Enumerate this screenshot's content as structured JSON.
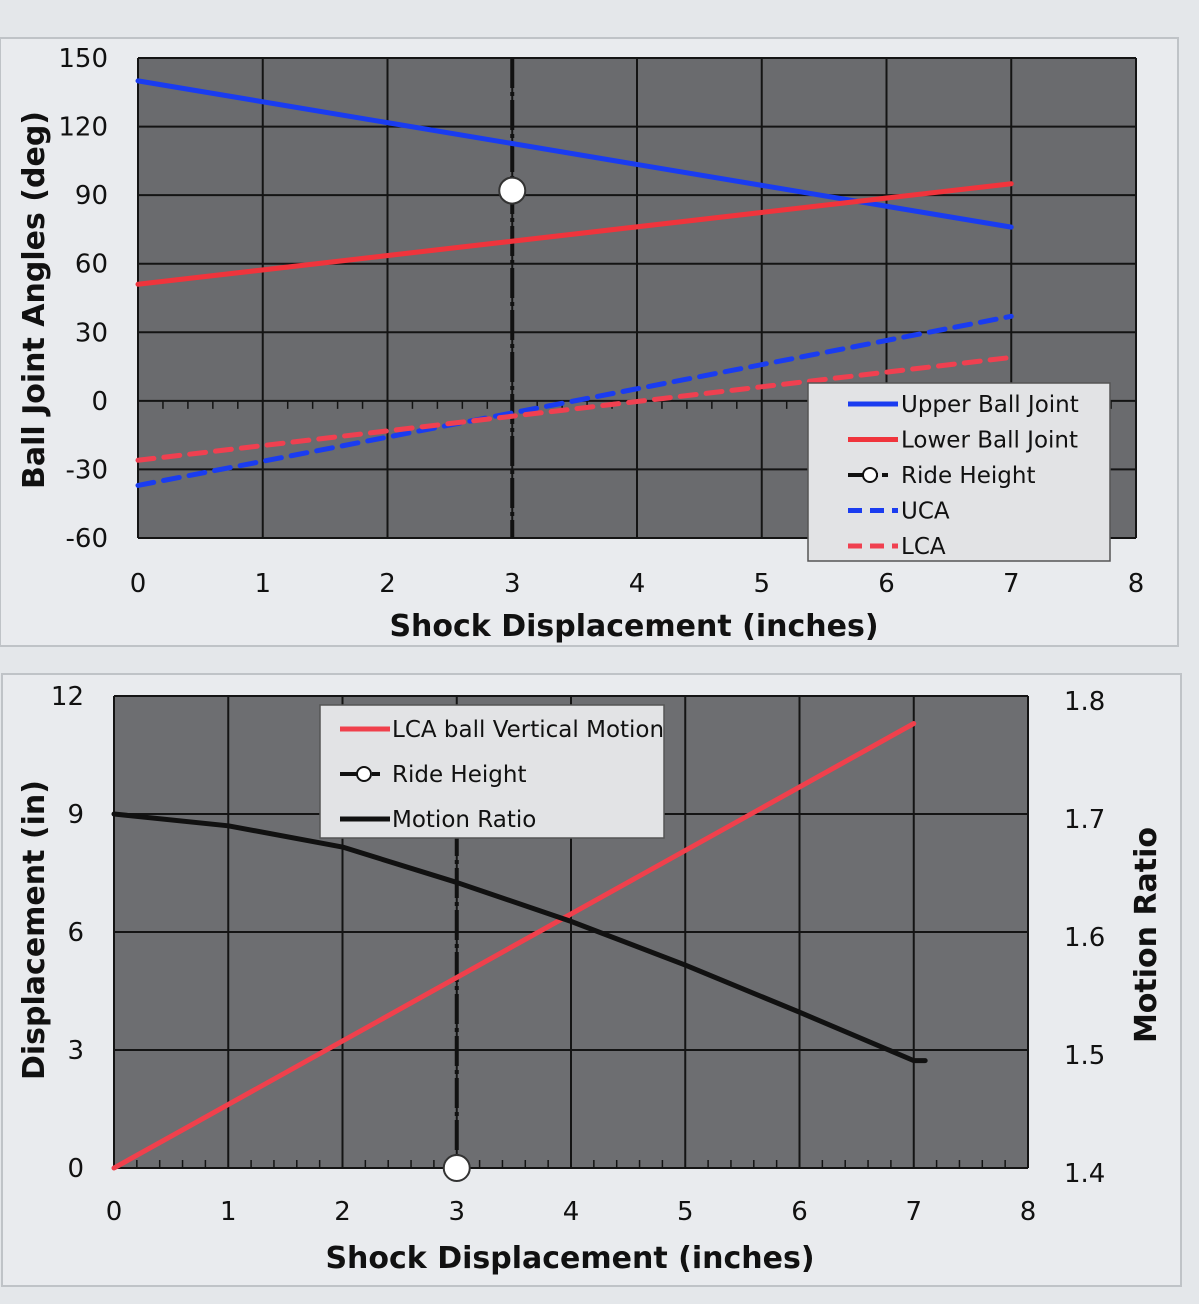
{
  "chart_data": [
    {
      "type": "line",
      "xlabel": "Shock Displacement (inches)",
      "ylabel": "Ball Joint Angles (deg)",
      "xlim": [
        0,
        8
      ],
      "ylim": [
        -60,
        150
      ],
      "x_ticks": [
        "0",
        "1",
        "2",
        "3",
        "4",
        "5",
        "6",
        "7",
        "8"
      ],
      "y_ticks": [
        "150",
        "120",
        "90",
        "60",
        "30",
        "0",
        "-30",
        "-60"
      ],
      "grid": true,
      "legend_position": "bottom-right",
      "series": [
        {
          "name": "Upper Ball Joint",
          "color": "#1a3cf0",
          "style": "solid",
          "x": [
            0,
            7
          ],
          "y": [
            140,
            76
          ]
        },
        {
          "name": "Lower Ball Joint",
          "color": "#f0343c",
          "style": "solid",
          "x": [
            0,
            7
          ],
          "y": [
            51,
            95
          ]
        },
        {
          "name": "Ride Height",
          "color": "#111111",
          "style": "dashed-marker",
          "x": [
            3
          ],
          "y": [
            92
          ]
        },
        {
          "name": "UCA",
          "color": "#1a3cf0",
          "style": "dashed",
          "x": [
            0,
            7
          ],
          "y": [
            -37,
            37
          ]
        },
        {
          "name": "LCA",
          "color": "#f04050",
          "style": "dashed",
          "x": [
            0,
            7
          ],
          "y": [
            -26,
            19
          ]
        }
      ]
    },
    {
      "type": "line",
      "xlabel": "Shock Displacement (inches)",
      "ylabel": "Displacement (in)",
      "y2label": "Motion Ratio",
      "xlim": [
        0,
        8
      ],
      "ylim": [
        0,
        12
      ],
      "y2lim": [
        1.4,
        1.8
      ],
      "x_ticks": [
        "0",
        "1",
        "2",
        "3",
        "4",
        "5",
        "6",
        "7",
        "8"
      ],
      "y_ticks": [
        "12",
        "9",
        "6",
        "3",
        "0"
      ],
      "y2_ticks": [
        "1.8",
        "1.7",
        "1.6",
        "1.5",
        "1.4"
      ],
      "grid": true,
      "legend_position": "top-center",
      "series": [
        {
          "name": "LCA ball Vertical Motion",
          "color": "#f0404c",
          "axis": "left",
          "x": [
            0,
            7
          ],
          "y": [
            0,
            11.3
          ]
        },
        {
          "name": "Ride Height",
          "color": "#111111",
          "axis": "left",
          "style": "dashed-marker",
          "x": [
            3
          ],
          "y": [
            0
          ]
        },
        {
          "name": "Motion Ratio",
          "color": "#111111",
          "axis": "right",
          "x": [
            0,
            1,
            2,
            3,
            4,
            5,
            6,
            7,
            7.1
          ],
          "y": [
            1.7,
            1.69,
            1.672,
            1.642,
            1.609,
            1.572,
            1.532,
            1.491,
            1.491
          ]
        }
      ]
    }
  ]
}
